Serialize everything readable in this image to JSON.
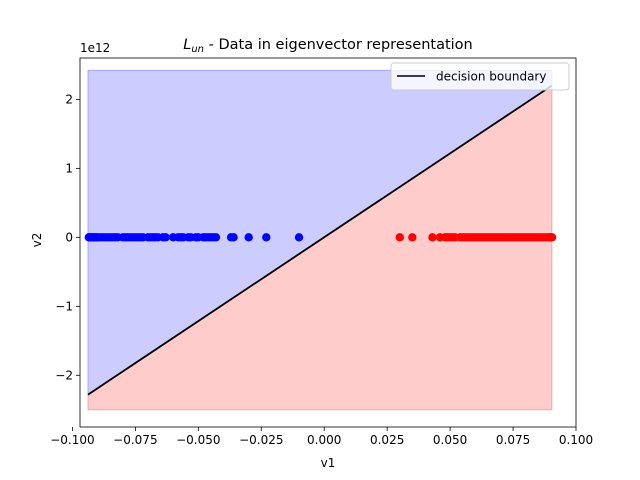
{
  "chart_data": {
    "type": "scatter",
    "title_main": "L",
    "title_sub": "un",
    "title_rest": " - Data in eigenvector representation",
    "xlabel": "v1",
    "ylabel": "v2",
    "y_offset_label": "1e12",
    "xlim": [
      -0.097,
      0.1
    ],
    "ylim": [
      -2.75,
      2.6
    ],
    "x_ticks": [
      -0.1,
      -0.075,
      -0.05,
      -0.025,
      0.0,
      0.025,
      0.05,
      0.075,
      0.1
    ],
    "x_tick_labels": [
      "−0.100",
      "−0.075",
      "−0.050",
      "−0.025",
      "0.000",
      "0.025",
      "0.050",
      "0.075",
      "0.100"
    ],
    "y_ticks": [
      -2,
      -1,
      0,
      1,
      2
    ],
    "y_tick_labels": [
      "−2",
      "−1",
      "0",
      "1",
      "2"
    ],
    "grid": false,
    "legend": {
      "position": "top-right",
      "label": "decision boundary"
    },
    "region_x": [
      -0.0938,
      0.0904
    ],
    "region_y": [
      -2.5,
      2.42
    ],
    "boundary": {
      "x": [
        -0.0938,
        0.0904
      ],
      "y": [
        -2.28,
        2.2
      ]
    },
    "colors": {
      "blue_region": "#ccccff",
      "red_region": "#ffcccc",
      "blue_points": "#0000ff",
      "red_points": "#ff0000",
      "boundary": "#000000"
    },
    "series": [
      {
        "color": "blue",
        "x": [
          -0.0935,
          -0.093,
          -0.0925,
          -0.092,
          -0.0915,
          -0.091,
          -0.0905,
          -0.09,
          -0.089,
          -0.088,
          -0.087,
          -0.086,
          -0.085,
          -0.084,
          -0.083,
          -0.082,
          -0.08,
          -0.079,
          -0.078,
          -0.077,
          -0.076,
          -0.075,
          -0.074,
          -0.073,
          -0.072,
          -0.07,
          -0.069,
          -0.068,
          -0.067,
          -0.066,
          -0.064,
          -0.063,
          -0.06,
          -0.058,
          -0.057,
          -0.056,
          -0.054,
          -0.053,
          -0.051,
          -0.05,
          -0.048,
          -0.047,
          -0.046,
          -0.045,
          -0.044,
          -0.043,
          -0.037,
          -0.036,
          -0.03,
          -0.023,
          -0.01
        ],
        "y": [
          0,
          0,
          0,
          0,
          0,
          0,
          0,
          0,
          0,
          0,
          0,
          0,
          0,
          0,
          0,
          0,
          0,
          0,
          0,
          0,
          0,
          0,
          0,
          0,
          0,
          0,
          0,
          0,
          0,
          0,
          0,
          0,
          0,
          0,
          0,
          0,
          0,
          0,
          0,
          0,
          0,
          0,
          0,
          0,
          0,
          0,
          0,
          0,
          0,
          0,
          0
        ]
      },
      {
        "color": "red",
        "x": [
          0.03,
          0.035,
          0.043,
          0.046,
          0.048,
          0.049,
          0.05,
          0.051,
          0.052,
          0.054,
          0.055,
          0.056,
          0.057,
          0.058,
          0.059,
          0.06,
          0.061,
          0.062,
          0.063,
          0.064,
          0.065,
          0.066,
          0.067,
          0.068,
          0.069,
          0.07,
          0.071,
          0.072,
          0.073,
          0.074,
          0.075,
          0.076,
          0.077,
          0.078,
          0.079,
          0.08,
          0.081,
          0.082,
          0.083,
          0.084,
          0.085,
          0.086,
          0.087,
          0.088,
          0.089,
          0.0895,
          0.09,
          0.0905
        ],
        "y": [
          0,
          0,
          0,
          0,
          0,
          0,
          0,
          0,
          0,
          0,
          0,
          0,
          0,
          0,
          0,
          0,
          0,
          0,
          0,
          0,
          0,
          0,
          0,
          0,
          0,
          0,
          0,
          0,
          0,
          0,
          0,
          0,
          0,
          0,
          0,
          0,
          0,
          0,
          0,
          0,
          0,
          0,
          0,
          0,
          0,
          0,
          0,
          0
        ]
      }
    ]
  }
}
